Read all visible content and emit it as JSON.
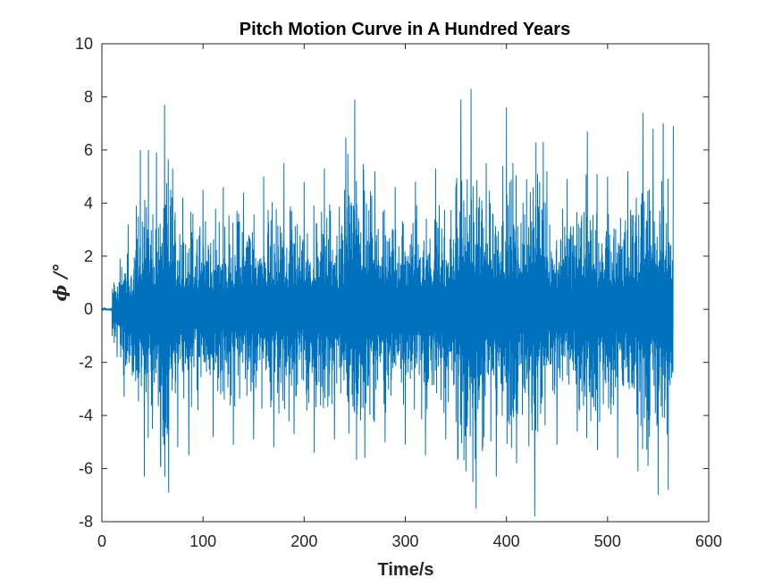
{
  "chart_data": {
    "type": "line",
    "title": "Pitch Motion Curve in A Hundred Years",
    "xlabel": "Time/s",
    "ylabel": "ϕ /°",
    "xlim": [
      0,
      600
    ],
    "ylim": [
      -8,
      10
    ],
    "xticks": [
      "0",
      "100",
      "200",
      "300",
      "400",
      "500",
      "600"
    ],
    "yticks": [
      "-8",
      "-6",
      "-4",
      "-2",
      "0",
      "2",
      "4",
      "6",
      "8",
      "10"
    ],
    "grid": false,
    "line_color": "#0072BD",
    "series": [
      {
        "x": [
          0,
          10,
          15,
          18,
          22,
          26,
          30,
          34,
          38,
          42,
          46,
          50,
          54,
          58,
          62,
          66,
          70,
          75,
          80,
          86,
          90,
          95,
          100,
          110,
          120,
          130,
          140,
          150,
          160,
          170,
          180,
          190,
          200,
          210,
          220,
          230,
          240,
          250,
          260,
          270,
          280,
          290,
          300,
          310,
          320,
          330,
          340,
          350,
          355,
          360,
          365,
          370,
          380,
          390,
          400,
          410,
          420,
          428,
          440,
          450,
          460,
          470,
          480,
          490,
          500,
          510,
          520,
          530,
          535,
          540,
          545,
          550,
          555,
          560,
          565
        ],
        "y": [
          -0.1,
          -0.1,
          -1.8,
          1.9,
          -3.3,
          3.2,
          -2.5,
          3.9,
          6.0,
          -6.3,
          6.0,
          -4.5,
          5.9,
          -5.8,
          7.7,
          -6.9,
          5.3,
          -5.2,
          4.2,
          -5.5,
          3.6,
          -3.8,
          4.5,
          -4.8,
          4.6,
          -5.1,
          4.4,
          -4.9,
          5.0,
          -5.2,
          5.5,
          -4.7,
          4.8,
          -5.4,
          5.3,
          -4.9,
          4.5,
          7.9,
          -5.6,
          5.2,
          -5.0,
          4.6,
          -5.1,
          4.8,
          -5.5,
          5.3,
          -4.9,
          4.6,
          7.9,
          -6.1,
          8.3,
          -7.5,
          5.5,
          -6.3,
          7.6,
          -5.8,
          4.9,
          -7.8,
          5.2,
          -5.1,
          4.9,
          -4.6,
          6.7,
          -5.3,
          5.0,
          -5.6,
          5.2,
          -6.1,
          7.4,
          -5.9,
          6.8,
          -7.0,
          7.0,
          -6.8,
          6.9
        ]
      }
    ]
  }
}
